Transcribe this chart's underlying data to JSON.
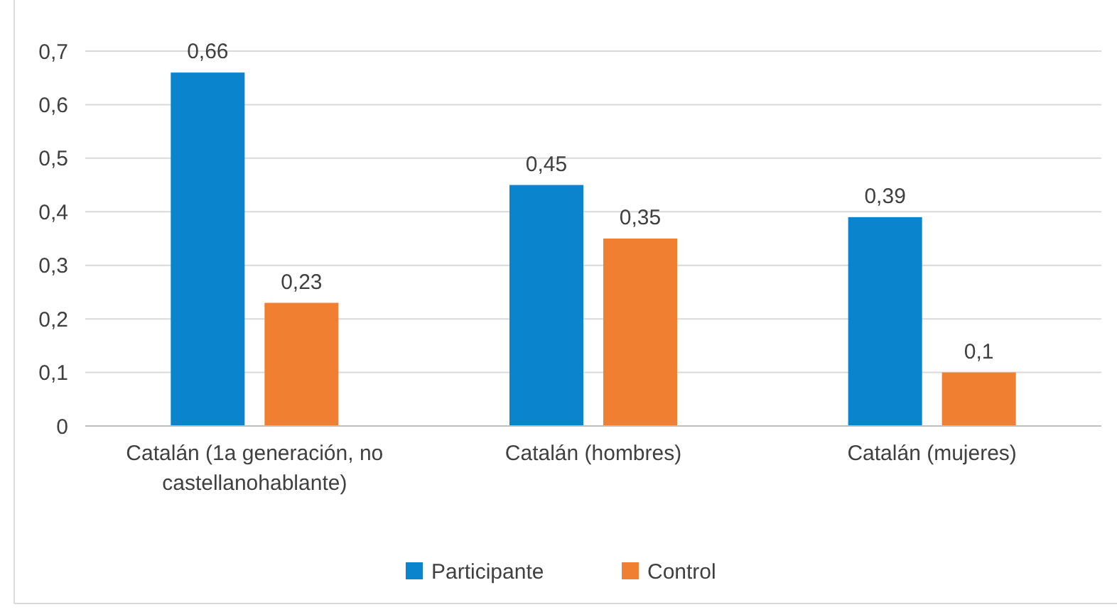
{
  "chart_data": {
    "type": "bar",
    "categories": [
      "Catalán (1a generación, no castellanohablante)",
      "Catalán (hombres)",
      "Catalán (mujeres)"
    ],
    "series": [
      {
        "name": "Participante",
        "color": "#0a84cc",
        "values": [
          0.66,
          0.45,
          0.39
        ],
        "value_labels": [
          "0,66",
          "0,45",
          "0,39"
        ]
      },
      {
        "name": "Control",
        "color": "#f07f32",
        "values": [
          0.23,
          0.35,
          0.1
        ],
        "value_labels": [
          "0,23",
          "0,35",
          "0,1"
        ]
      }
    ],
    "ylim": [
      0,
      0.7
    ],
    "yticks": [
      0,
      {
        "value": 0.1,
        "label": "0,1"
      },
      {
        "value": 0.2,
        "label": "0,2"
      },
      {
        "value": 0.3,
        "label": "0,3"
      },
      {
        "value": 0.4,
        "label": "0,4"
      },
      {
        "value": 0.5,
        "label": "0,5"
      },
      {
        "value": 0.6,
        "label": "0,6"
      },
      {
        "value": 0.7,
        "label": "0,7"
      }
    ],
    "grid": "y",
    "legend": "bottom"
  }
}
